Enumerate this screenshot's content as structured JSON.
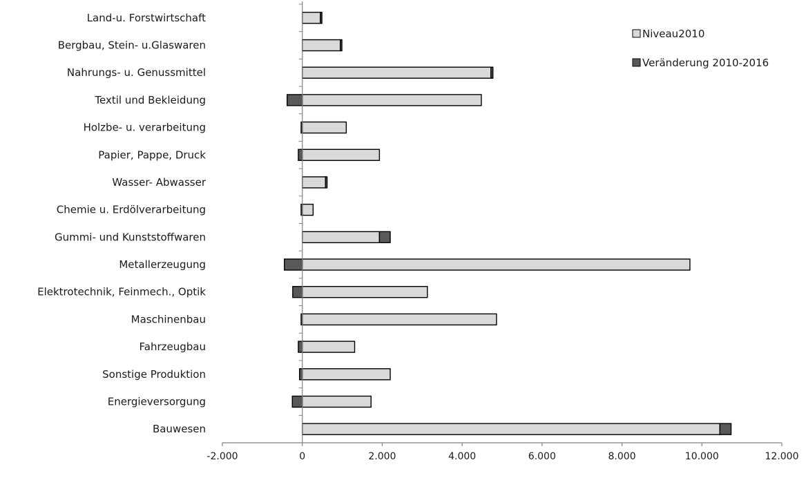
{
  "chart_data": {
    "type": "bar",
    "orientation": "horizontal",
    "stacked": true,
    "title": "",
    "xlabel": "",
    "ylabel": "",
    "xlim": [
      -2000,
      12000
    ],
    "xticks": [
      -2000,
      0,
      2000,
      4000,
      6000,
      8000,
      10000,
      12000
    ],
    "xtick_labels": [
      "-2.000",
      "0",
      "2.000",
      "4.000",
      "6.000",
      "8.000",
      "10.000",
      "12.000"
    ],
    "grid": false,
    "legend_position": "top-right",
    "categories": [
      "Land-u. Forstwirtschaft",
      "Bergbau, Stein- u.Glaswaren",
      "Nahrungs- u. Genussmittel",
      "Textil und Bekleidung",
      "Holzbe- u. verarbeitung",
      "Papier, Pappe,   Druck",
      "Wasser- Abwasser",
      "Chemie u. Erdölverarbeitung",
      "Gummi- und Kunststoffwaren",
      "Metallerzeugung",
      "Elektrotechnik, Feinmech., Optik",
      "Maschinenbau",
      "Fahrzeugbau",
      "Sonstige Produktion",
      "Energieversorgung",
      "Bauwesen"
    ],
    "series": [
      {
        "name": "Niveau2010",
        "color": "#d9d9d9",
        "values": [
          450,
          950,
          4720,
          4480,
          1100,
          1930,
          580,
          270,
          1930,
          9700,
          3130,
          4860,
          1310,
          2200,
          1720,
          10450
        ]
      },
      {
        "name": "Veränderung 2010-2016",
        "color": "#595959",
        "values": [
          40,
          40,
          50,
          -380,
          -30,
          -100,
          40,
          -30,
          270,
          -450,
          -240,
          -30,
          -100,
          -70,
          -250,
          280
        ]
      }
    ]
  }
}
